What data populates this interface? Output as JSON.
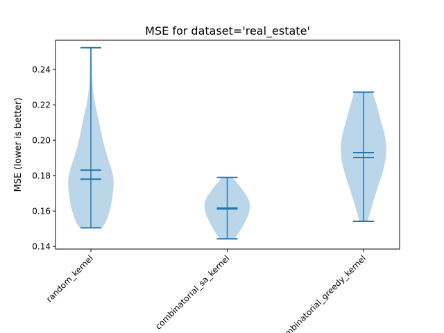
{
  "chart_data": {
    "type": "violin",
    "title": "MSE for dataset='real_estate'",
    "xlabel": "",
    "ylabel": "MSE (lower is better)",
    "ylim": [
      0.1385,
      0.2565
    ],
    "yticks": [
      0.14,
      0.16,
      0.18,
      0.2,
      0.22,
      0.24
    ],
    "ytick_labels": [
      "0.14",
      "0.16",
      "0.18",
      "0.20",
      "0.22",
      "0.24"
    ],
    "categories": [
      "random_kernel",
      "combinatorial_sa_kernel",
      "combinatorial_greedy_kernel"
    ],
    "tick_rotation": 45,
    "grid": false,
    "colors": {
      "body": "#1f77b4",
      "body_alpha": 0.3,
      "lines": "#1f77b4"
    },
    "series": [
      {
        "min": 0.1505,
        "max": 0.2523,
        "mean": 0.1831,
        "median": 0.178,
        "density": [
          [
            0.1505,
            0.48
          ],
          [
            0.153,
            0.62
          ],
          [
            0.157,
            0.75
          ],
          [
            0.162,
            0.86
          ],
          [
            0.167,
            0.93
          ],
          [
            0.172,
            0.98
          ],
          [
            0.176,
            1.0
          ],
          [
            0.18,
            0.97
          ],
          [
            0.185,
            0.87
          ],
          [
            0.19,
            0.74
          ],
          [
            0.195,
            0.62
          ],
          [
            0.2,
            0.52
          ],
          [
            0.205,
            0.44
          ],
          [
            0.21,
            0.36
          ],
          [
            0.215,
            0.28
          ],
          [
            0.22,
            0.19
          ],
          [
            0.225,
            0.12
          ],
          [
            0.23,
            0.08
          ],
          [
            0.24,
            0.05
          ],
          [
            0.2523,
            0.04
          ]
        ]
      },
      {
        "min": 0.1443,
        "max": 0.179,
        "mean": 0.1617,
        "median": 0.1612,
        "density": [
          [
            0.1443,
            0.32
          ],
          [
            0.147,
            0.48
          ],
          [
            0.15,
            0.62
          ],
          [
            0.153,
            0.75
          ],
          [
            0.156,
            0.86
          ],
          [
            0.159,
            0.95
          ],
          [
            0.162,
            1.0
          ],
          [
            0.165,
            0.98
          ],
          [
            0.168,
            0.88
          ],
          [
            0.171,
            0.72
          ],
          [
            0.174,
            0.55
          ],
          [
            0.177,
            0.35
          ],
          [
            0.179,
            0.22
          ]
        ]
      },
      {
        "min": 0.1542,
        "max": 0.2272,
        "mean": 0.193,
        "median": 0.1902,
        "density": [
          [
            0.1542,
            0.18
          ],
          [
            0.158,
            0.26
          ],
          [
            0.162,
            0.35
          ],
          [
            0.166,
            0.44
          ],
          [
            0.17,
            0.54
          ],
          [
            0.175,
            0.66
          ],
          [
            0.18,
            0.79
          ],
          [
            0.185,
            0.9
          ],
          [
            0.19,
            0.97
          ],
          [
            0.195,
            1.0
          ],
          [
            0.2,
            0.97
          ],
          [
            0.205,
            0.89
          ],
          [
            0.21,
            0.78
          ],
          [
            0.215,
            0.68
          ],
          [
            0.22,
            0.57
          ],
          [
            0.2272,
            0.4
          ]
        ]
      }
    ]
  }
}
